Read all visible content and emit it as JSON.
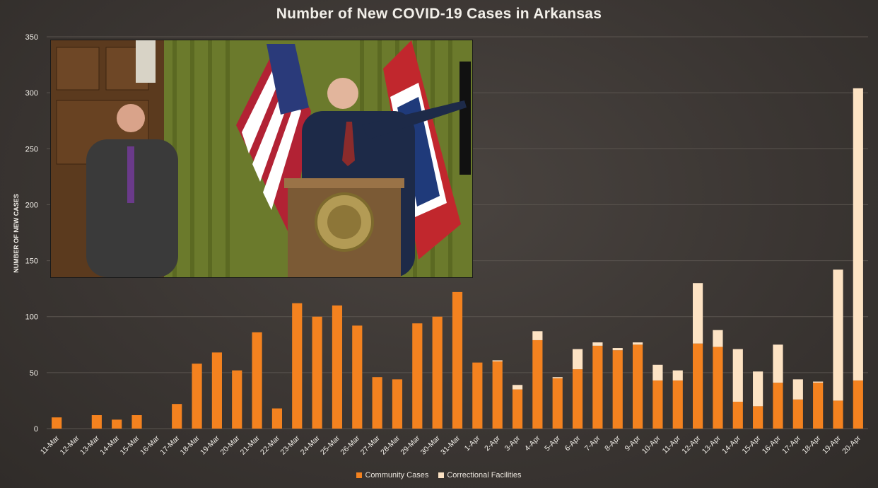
{
  "colors": {
    "community": "#f4821f",
    "correctional": "#fde3c4",
    "grid": "#5a544f",
    "text": "#f2efe9"
  },
  "chart_data": {
    "type": "bar",
    "stacked": true,
    "title": "Number of New COVID-19 Cases in Arkansas",
    "xlabel": "",
    "ylabel": "NUMBER OF NEW CASES",
    "ylim": [
      0,
      350
    ],
    "yticks": [
      0,
      50,
      100,
      150,
      200,
      250,
      300,
      350
    ],
    "grid": true,
    "legend_position": "bottom",
    "categories": [
      "11-Mar",
      "12-Mar",
      "13-Mar",
      "14-Mar",
      "15-Mar",
      "16-Mar",
      "17-Mar",
      "18-Mar",
      "19-Mar",
      "20-Mar",
      "21-Mar",
      "22-Mar",
      "23-Mar",
      "24-Mar",
      "25-Mar",
      "26-Mar",
      "27-Mar",
      "28-Mar",
      "29-Mar",
      "30-Mar",
      "31-Mar",
      "1-Apr",
      "2-Apr",
      "3-Apr",
      "4-Apr",
      "5-Apr",
      "6-Apr",
      "7-Apr",
      "8-Apr",
      "9-Apr",
      "10-Apr",
      "11-Apr",
      "12-Apr",
      "13-Apr",
      "14-Apr",
      "15-Apr",
      "16-Apr",
      "17-Apr",
      "18-Apr",
      "19-Apr",
      "20-Apr"
    ],
    "series": [
      {
        "name": "Community Cases",
        "values": [
          10,
          0,
          12,
          8,
          12,
          0,
          22,
          58,
          68,
          52,
          86,
          18,
          112,
          100,
          110,
          92,
          46,
          44,
          94,
          100,
          122,
          59,
          60,
          35,
          79,
          45,
          53,
          74,
          70,
          75,
          43,
          43,
          76,
          73,
          24,
          20,
          41,
          26,
          41,
          25,
          43
        ]
      },
      {
        "name": "Correctional Facilities",
        "values": [
          0,
          0,
          0,
          0,
          0,
          0,
          0,
          0,
          0,
          0,
          0,
          0,
          0,
          0,
          0,
          0,
          0,
          0,
          0,
          0,
          0,
          0,
          1,
          4,
          8,
          1,
          18,
          3,
          2,
          2,
          14,
          9,
          54,
          15,
          47,
          31,
          34,
          18,
          1,
          117,
          261
        ]
      }
    ]
  },
  "video": {
    "description_icons": [
      "us-flag-icon",
      "arkansas-flag-icon",
      "state-seal-icon"
    ]
  }
}
